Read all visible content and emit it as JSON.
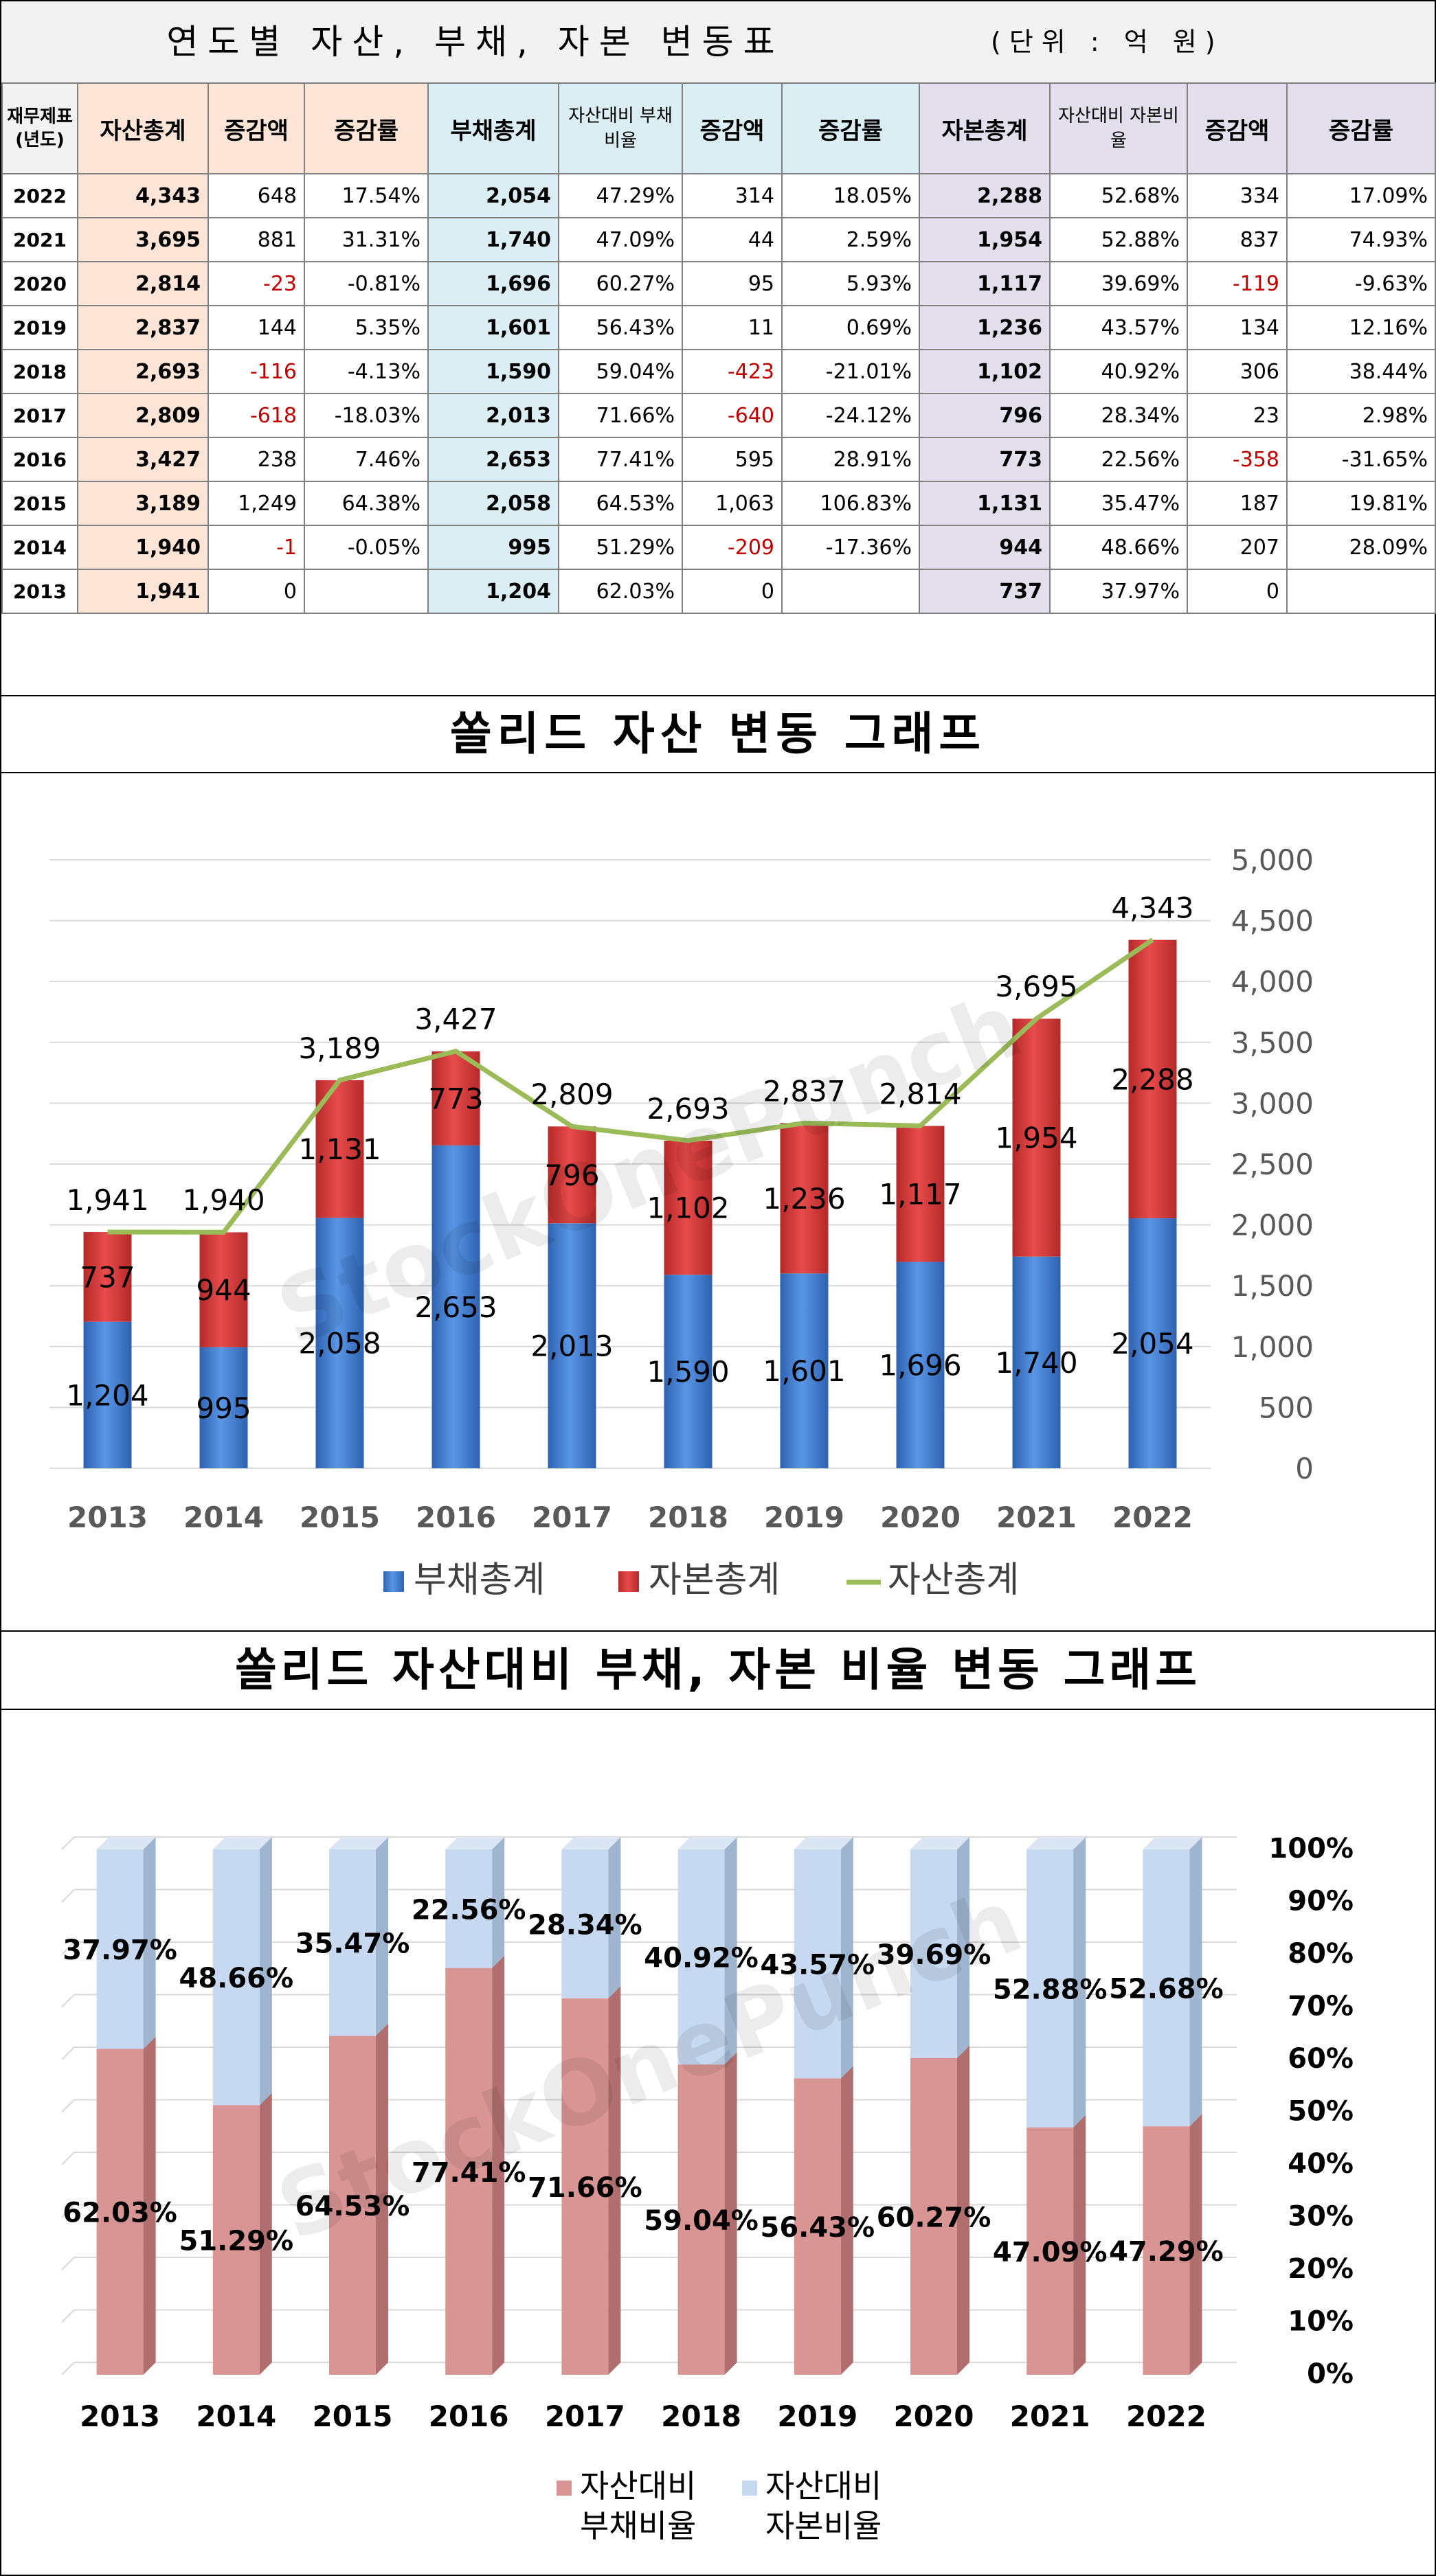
{
  "table": {
    "title": "연도별 자산, 부채, 자본 변동표",
    "unit": "(단위 : 억 원)",
    "headers": {
      "year": "재무제표(년도)",
      "asset_total": "자산총계",
      "asset_change": "증감액",
      "asset_rate": "증감률",
      "debt_total": "부채총계",
      "debt_ratio": "자산대비 부채비율",
      "debt_change": "증감액",
      "debt_rate": "증감률",
      "cap_total": "자본총계",
      "cap_ratio": "자산대비 자본비율",
      "cap_change": "증감액",
      "cap_rate": "증감률"
    },
    "rows": [
      {
        "year": "2022",
        "asset": "4,343",
        "a_chg": "648",
        "a_rate": "17.54%",
        "debt": "2,054",
        "d_ratio": "47.29%",
        "d_chg": "314",
        "d_rate": "18.05%",
        "cap": "2,288",
        "c_ratio": "52.68%",
        "c_chg": "334",
        "c_rate": "17.09%"
      },
      {
        "year": "2021",
        "asset": "3,695",
        "a_chg": "881",
        "a_rate": "31.31%",
        "debt": "1,740",
        "d_ratio": "47.09%",
        "d_chg": "44",
        "d_rate": "2.59%",
        "cap": "1,954",
        "c_ratio": "52.88%",
        "c_chg": "837",
        "c_rate": "74.93%"
      },
      {
        "year": "2020",
        "asset": "2,814",
        "a_chg": "-23",
        "a_rate": "-0.81%",
        "debt": "1,696",
        "d_ratio": "60.27%",
        "d_chg": "95",
        "d_rate": "5.93%",
        "cap": "1,117",
        "c_ratio": "39.69%",
        "c_chg": "-119",
        "c_rate": "-9.63%"
      },
      {
        "year": "2019",
        "asset": "2,837",
        "a_chg": "144",
        "a_rate": "5.35%",
        "debt": "1,601",
        "d_ratio": "56.43%",
        "d_chg": "11",
        "d_rate": "0.69%",
        "cap": "1,236",
        "c_ratio": "43.57%",
        "c_chg": "134",
        "c_rate": "12.16%"
      },
      {
        "year": "2018",
        "asset": "2,693",
        "a_chg": "-116",
        "a_rate": "-4.13%",
        "debt": "1,590",
        "d_ratio": "59.04%",
        "d_chg": "-423",
        "d_rate": "-21.01%",
        "cap": "1,102",
        "c_ratio": "40.92%",
        "c_chg": "306",
        "c_rate": "38.44%"
      },
      {
        "year": "2017",
        "asset": "2,809",
        "a_chg": "-618",
        "a_rate": "-18.03%",
        "debt": "2,013",
        "d_ratio": "71.66%",
        "d_chg": "-640",
        "d_rate": "-24.12%",
        "cap": "796",
        "c_ratio": "28.34%",
        "c_chg": "23",
        "c_rate": "2.98%"
      },
      {
        "year": "2016",
        "asset": "3,427",
        "a_chg": "238",
        "a_rate": "7.46%",
        "debt": "2,653",
        "d_ratio": "77.41%",
        "d_chg": "595",
        "d_rate": "28.91%",
        "cap": "773",
        "c_ratio": "22.56%",
        "c_chg": "-358",
        "c_rate": "-31.65%"
      },
      {
        "year": "2015",
        "asset": "3,189",
        "a_chg": "1,249",
        "a_rate": "64.38%",
        "debt": "2,058",
        "d_ratio": "64.53%",
        "d_chg": "1,063",
        "d_rate": "106.83%",
        "cap": "1,131",
        "c_ratio": "35.47%",
        "c_chg": "187",
        "c_rate": "19.81%"
      },
      {
        "year": "2014",
        "asset": "1,940",
        "a_chg": "-1",
        "a_rate": "-0.05%",
        "debt": "995",
        "d_ratio": "51.29%",
        "d_chg": "-209",
        "d_rate": "-17.36%",
        "cap": "944",
        "c_ratio": "48.66%",
        "c_chg": "207",
        "c_rate": "28.09%"
      },
      {
        "year": "2013",
        "asset": "1,941",
        "a_chg": "0",
        "a_rate": "",
        "debt": "1,204",
        "d_ratio": "62.03%",
        "d_chg": "0",
        "d_rate": "",
        "cap": "737",
        "c_ratio": "37.97%",
        "c_chg": "0",
        "c_rate": ""
      }
    ]
  },
  "watermark": "StockOnePunch",
  "colors": {
    "debt_bar": "#4a86d6",
    "capital_bar": "#d9383a",
    "asset_line": "#9bbb59",
    "debt_ratio_bar": "#d99594",
    "capital_ratio_bar": "#c6d9f0",
    "negative_text": "#c00000"
  },
  "chart_data": [
    {
      "type": "bar",
      "stacked": true,
      "title": "쏠리드 자산 변동 그래프",
      "categories": [
        "2013",
        "2014",
        "2015",
        "2016",
        "2017",
        "2018",
        "2019",
        "2020",
        "2021",
        "2022"
      ],
      "series": [
        {
          "name": "부채총계",
          "kind": "bar",
          "values": [
            1204,
            995,
            2058,
            2653,
            2013,
            1590,
            1601,
            1696,
            1740,
            2054
          ]
        },
        {
          "name": "자본총계",
          "kind": "bar",
          "values": [
            737,
            944,
            1131,
            773,
            796,
            1102,
            1236,
            1117,
            1954,
            2288
          ]
        },
        {
          "name": "자산총계",
          "kind": "line",
          "values": [
            1941,
            1940,
            3189,
            3427,
            2809,
            2693,
            2837,
            2814,
            3695,
            4343
          ]
        }
      ],
      "ylim": [
        0,
        5000
      ],
      "yticks": [
        "0",
        "500",
        "1,000",
        "1,500",
        "2,000",
        "2,500",
        "3,000",
        "3,500",
        "4,000",
        "4,500",
        "5,000"
      ],
      "legend": "bottom",
      "grid": true
    },
    {
      "type": "bar",
      "stacked": true,
      "percent": true,
      "title": "쏠리드 자산대비 부채, 자본 비율 변동 그래프",
      "categories": [
        "2013",
        "2014",
        "2015",
        "2016",
        "2017",
        "2018",
        "2019",
        "2020",
        "2021",
        "2022"
      ],
      "series": [
        {
          "name": "자산대비 부채비율",
          "values": [
            62.03,
            51.29,
            64.53,
            77.41,
            71.66,
            59.04,
            56.43,
            60.27,
            47.09,
            47.29
          ]
        },
        {
          "name": "자산대비 자본비율",
          "values": [
            37.97,
            48.66,
            35.47,
            22.56,
            28.34,
            40.92,
            43.57,
            39.69,
            52.88,
            52.68
          ]
        }
      ],
      "ylim": [
        0,
        100
      ],
      "yticks": [
        "0%",
        "10%",
        "20%",
        "30%",
        "40%",
        "50%",
        "60%",
        "70%",
        "80%",
        "90%",
        "100%"
      ],
      "legend": "bottom",
      "grid": true
    }
  ]
}
